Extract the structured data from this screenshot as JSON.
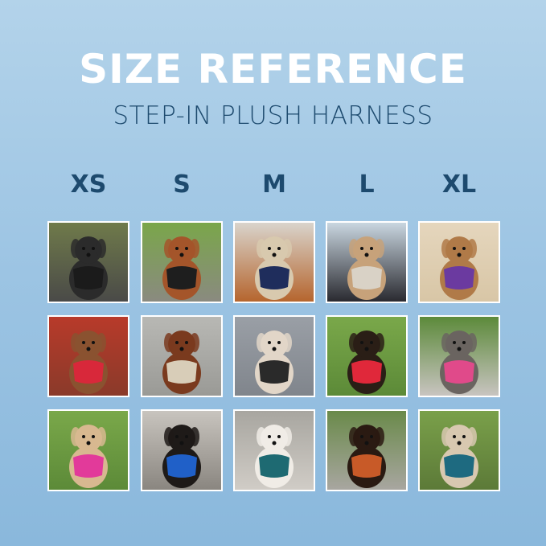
{
  "title": "SIZE REFERENCE",
  "subtitle": "STEP-IN PLUSH HARNESS",
  "sizes": [
    "XS",
    "S",
    "M",
    "L",
    "XL"
  ],
  "photos": [
    [
      {
        "bg": [
          "#6f7a4a",
          "#4a4a48"
        ],
        "dog": "#2b2b2b",
        "harness": "#1b1b1b"
      },
      {
        "bg": [
          "#7aa64a",
          "#8a8a80"
        ],
        "dog": "#a4552a",
        "harness": "#1e1e1e"
      },
      {
        "bg": [
          "#d9d4cc",
          "#b5652e"
        ],
        "dog": "#d8c9ae",
        "harness": "#1f2d5c"
      },
      {
        "bg": [
          "#c9d6e0",
          "#2a2a30"
        ],
        "dog": "#c7a27a",
        "harness": "#d9d2c6"
      },
      {
        "bg": [
          "#e5d6bd",
          "#d8c6a6"
        ],
        "dog": "#b07a48",
        "harness": "#6b3aa0"
      }
    ],
    [
      {
        "bg": [
          "#b83a2a",
          "#8a3a2a"
        ],
        "dog": "#8a5230",
        "harness": "#d8283a"
      },
      {
        "bg": [
          "#b8b8b4",
          "#9a9a96"
        ],
        "dog": "#7a3a1e",
        "harness": "#d8cdb8"
      },
      {
        "bg": [
          "#9a9fa6",
          "#80858c"
        ],
        "dog": "#e2d6c8",
        "harness": "#2a2a2a"
      },
      {
        "bg": [
          "#7aa84a",
          "#5c8a38"
        ],
        "dog": "#2a1e16",
        "harness": "#e0283a"
      },
      {
        "bg": [
          "#5c8a3a",
          "#c8c4c0"
        ],
        "dog": "#6a6460",
        "harness": "#e04a8a"
      }
    ],
    [
      {
        "bg": [
          "#7aa84a",
          "#5c8a38"
        ],
        "dog": "#d8b890",
        "harness": "#e23a9a"
      },
      {
        "bg": [
          "#c8c4be",
          "#8a8680"
        ],
        "dog": "#1e1a18",
        "harness": "#2060c8"
      },
      {
        "bg": [
          "#a8a6a0",
          "#d0ccc6"
        ],
        "dog": "#f0ece6",
        "harness": "#1e6a72"
      },
      {
        "bg": [
          "#6a8a4a",
          "#a8a6a0"
        ],
        "dog": "#2a1a12",
        "harness": "#c85a28"
      },
      {
        "bg": [
          "#7aa04a",
          "#5c7a38"
        ],
        "dog": "#d8c8b0",
        "harness": "#1e6a80"
      }
    ]
  ]
}
